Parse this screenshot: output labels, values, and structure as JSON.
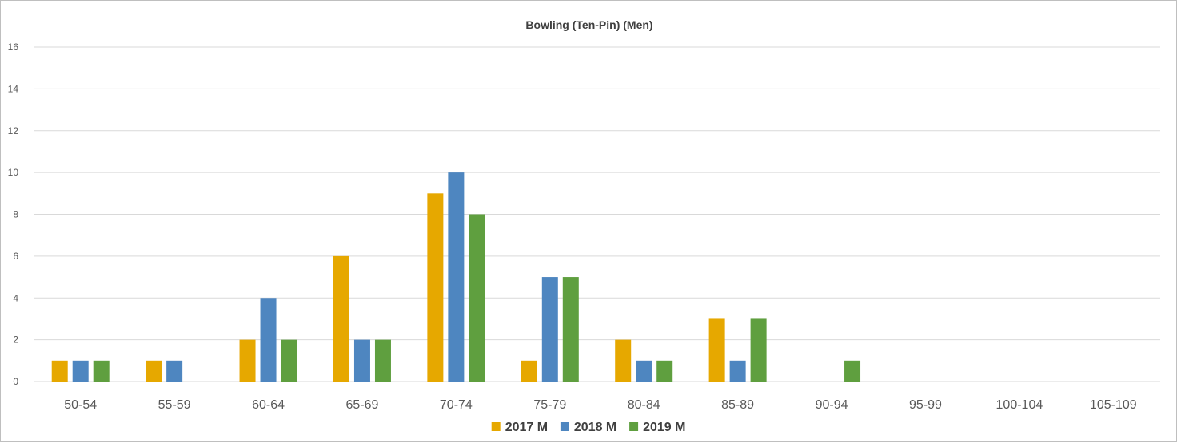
{
  "chart_data": {
    "type": "bar",
    "title": "Bowling (Ten-Pin) (Men)",
    "xlabel": "",
    "ylabel": "",
    "ylim": [
      0,
      16
    ],
    "yticks": [
      0,
      2,
      4,
      6,
      8,
      10,
      12,
      14,
      16
    ],
    "grid": true,
    "legend_position": "bottom",
    "categories": [
      "50-54",
      "55-59",
      "60-64",
      "65-69",
      "70-74",
      "75-79",
      "80-84",
      "85-89",
      "90-94",
      "95-99",
      "100-104",
      "105-109"
    ],
    "series": [
      {
        "name": "2017 M",
        "color": "#e6a800",
        "values": [
          1,
          1,
          2,
          6,
          9,
          1,
          2,
          3,
          0,
          0,
          0,
          0
        ]
      },
      {
        "name": "2018 M",
        "color": "#4e86c0",
        "values": [
          1,
          1,
          4,
          2,
          10,
          5,
          1,
          1,
          0,
          0,
          0,
          0
        ]
      },
      {
        "name": "2019 M",
        "color": "#5f9f3f",
        "values": [
          1,
          0,
          2,
          2,
          8,
          5,
          1,
          3,
          1,
          0,
          0,
          0
        ]
      }
    ]
  }
}
